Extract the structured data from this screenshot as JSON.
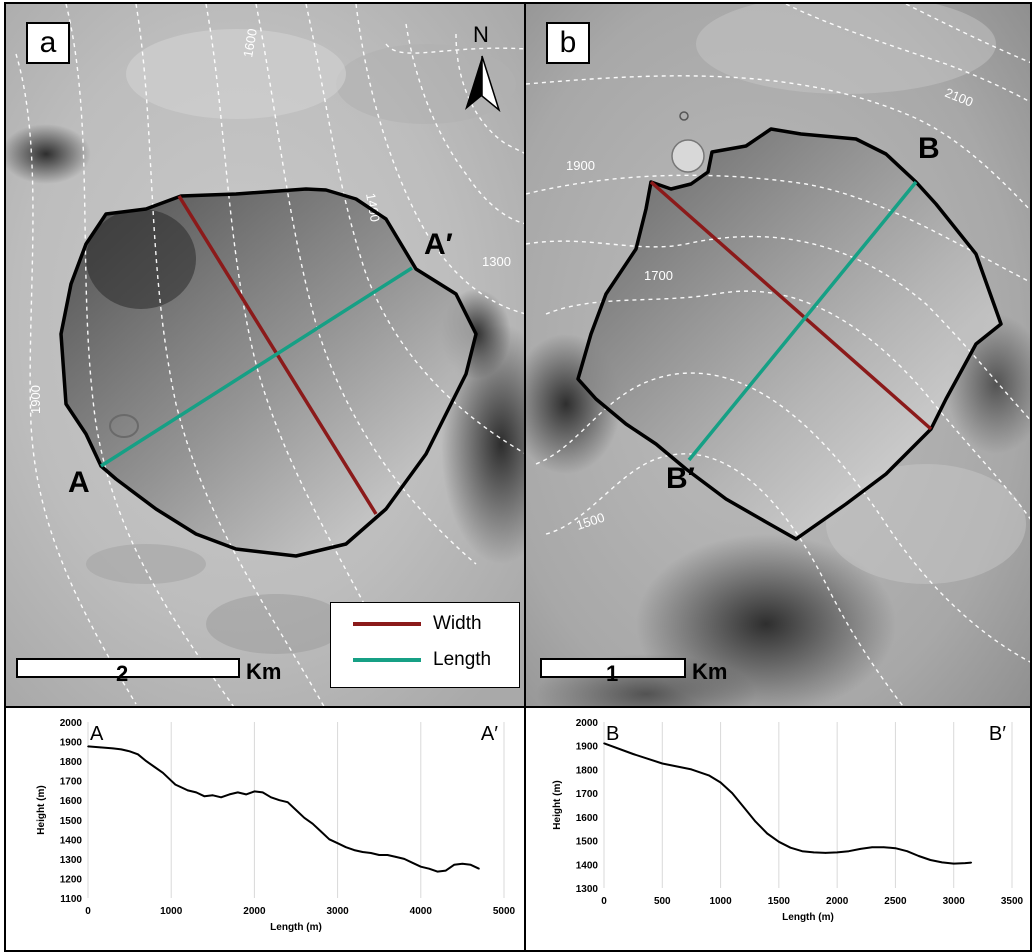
{
  "panel_a": {
    "tag": "a",
    "north_label": "N",
    "point_start": "A",
    "point_end": "A′",
    "contours": [
      "1600",
      "1400",
      "1300",
      "1900"
    ],
    "scale_value": "2",
    "scale_unit": "Km"
  },
  "panel_b": {
    "tag": "b",
    "point_start": "B",
    "point_end": "B′",
    "contours": [
      "2100",
      "1900",
      "1700",
      "1500"
    ],
    "scale_value": "1",
    "scale_unit": "Km"
  },
  "legend": {
    "items": [
      {
        "label": "Width",
        "color": "#8b1a1a"
      },
      {
        "label": "Length",
        "color": "#16a085"
      }
    ]
  },
  "colors": {
    "width_line": "#8b1a1a",
    "length_line": "#16a085",
    "outline": "#000000",
    "contour": "#ffffff"
  },
  "chart_data": [
    {
      "type": "line",
      "title": "",
      "corner_left": "A",
      "corner_right": "A′",
      "xlabel": "Length (m)",
      "ylabel": "Height (m)",
      "xlim": [
        0,
        5000
      ],
      "ylim": [
        1100,
        2000
      ],
      "xticks": [
        "0",
        "1000",
        "2000",
        "3000",
        "4000",
        "5000"
      ],
      "yticks": [
        "1100",
        "1200",
        "1300",
        "1400",
        "1500",
        "1600",
        "1700",
        "1800",
        "1900",
        "2000"
      ],
      "grid": "vertical",
      "x": [
        0,
        150,
        300,
        400,
        500,
        600,
        700,
        800,
        900,
        1000,
        1050,
        1100,
        1200,
        1300,
        1400,
        1500,
        1600,
        1700,
        1800,
        1900,
        2000,
        2100,
        2200,
        2300,
        2400,
        2500,
        2600,
        2700,
        2800,
        2900,
        3000,
        3100,
        3200,
        3300,
        3400,
        3500,
        3600,
        3700,
        3800,
        3900,
        4000,
        4100,
        4200,
        4300,
        4400,
        4500,
        4600,
        4700
      ],
      "y": [
        1875,
        1870,
        1865,
        1860,
        1850,
        1835,
        1800,
        1770,
        1740,
        1700,
        1680,
        1670,
        1650,
        1640,
        1620,
        1625,
        1615,
        1630,
        1640,
        1630,
        1645,
        1640,
        1615,
        1600,
        1590,
        1550,
        1510,
        1480,
        1440,
        1400,
        1380,
        1360,
        1345,
        1335,
        1330,
        1320,
        1320,
        1310,
        1300,
        1280,
        1260,
        1250,
        1235,
        1240,
        1270,
        1275,
        1270,
        1250
      ]
    },
    {
      "type": "line",
      "title": "",
      "corner_left": "B",
      "corner_right": "B′",
      "xlabel": "Length (m)",
      "ylabel": "Height (m)",
      "xlim": [
        0,
        3500
      ],
      "ylim": [
        1300,
        2000
      ],
      "xticks": [
        "0",
        "500",
        "1000",
        "1500",
        "2000",
        "2500",
        "3000",
        "3500"
      ],
      "yticks": [
        "1300",
        "1400",
        "1500",
        "1600",
        "1700",
        "1800",
        "1900",
        "2000"
      ],
      "grid": "vertical",
      "x": [
        0,
        250,
        500,
        750,
        900,
        1000,
        1100,
        1200,
        1300,
        1400,
        1500,
        1600,
        1700,
        1800,
        1900,
        2000,
        2100,
        2200,
        2300,
        2400,
        2500,
        2600,
        2700,
        2800,
        2900,
        3000,
        3100,
        3150
      ],
      "y": [
        1910,
        1865,
        1825,
        1800,
        1775,
        1745,
        1700,
        1640,
        1580,
        1530,
        1495,
        1470,
        1455,
        1450,
        1448,
        1450,
        1455,
        1465,
        1472,
        1472,
        1468,
        1455,
        1435,
        1418,
        1408,
        1403,
        1405,
        1407
      ]
    }
  ]
}
